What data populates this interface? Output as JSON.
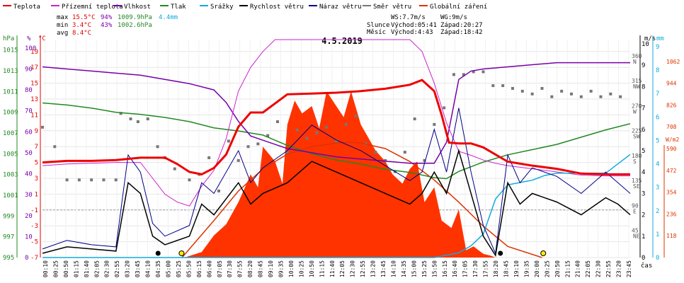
{
  "chart_data": {
    "type": "line",
    "title": "4.5.2019",
    "legend": [
      {
        "label": "Teplota",
        "color": "#dd0000"
      },
      {
        "label": "Přízemní teplota",
        "color": "#cc22cc"
      },
      {
        "label": "Vlhkost",
        "color": "#7700aa"
      },
      {
        "label": "Tlak",
        "color": "#228822"
      },
      {
        "label": "Srážky",
        "color": "#11aadd"
      },
      {
        "label": "Rychlost větru",
        "color": "#000000"
      },
      {
        "label": "Náraz větru",
        "color": "#000088"
      },
      {
        "label": "Směr větru",
        "color": "#777777"
      },
      {
        "label": "Globální záření",
        "color": "#dd3300"
      }
    ],
    "stats": {
      "rows": [
        {
          "label": "max",
          "temp": "15.5°C",
          "hum": "94%",
          "press": "1009.9hPa",
          "rain": "4.4mm"
        },
        {
          "label": "min",
          "temp": "3.4°C",
          "hum": "43%",
          "press": "1002.6hPa",
          "rain": ""
        },
        {
          "label": "avg",
          "temp": "8.4°C",
          "hum": "",
          "press": "",
          "rain": ""
        }
      ],
      "ws": "WS:7.7m/s",
      "wg": "WG:9m/s",
      "sun": {
        "label": "Slunce",
        "rise": "Východ:05:41",
        "set": "Západ:20:27"
      },
      "moon": {
        "label": "Měsíc",
        "rise": "Východ:4:43",
        "set": "Západ:18:42"
      }
    },
    "axes": {
      "hpa": {
        "label": "hPa",
        "ticks": [
          "1015",
          "1013",
          "1011",
          "1009",
          "1007",
          "1005",
          "1003",
          "1001",
          "999",
          "997",
          "995"
        ],
        "range": [
          995,
          1016
        ]
      },
      "pct": {
        "label": "%",
        "ticks": [
          "100",
          "90",
          "80",
          "70",
          "60",
          "50",
          "40",
          "30",
          "20",
          "10",
          "0"
        ]
      },
      "temp": {
        "label": "°C",
        "ticks": [
          "19",
          "17",
          "15",
          "13",
          "11",
          "9",
          "7",
          "5",
          "3",
          "1",
          "-1",
          "-3",
          "-5",
          "-7"
        ],
        "range": [
          -7,
          20.5
        ]
      },
      "dir": {
        "label": "",
        "ticks": [
          {
            "v": "360",
            "c": "N"
          },
          {
            "v": "315",
            "c": "NW"
          },
          {
            "v": "270",
            "c": "W"
          },
          {
            "v": "225",
            "c": "SW"
          },
          {
            "v": "180",
            "c": "S"
          },
          {
            "v": "135",
            "c": "SE"
          },
          {
            "v": "90",
            "c": "E"
          },
          {
            "v": "45",
            "c": "NE"
          }
        ]
      },
      "ms": {
        "label": "m/s",
        "ticks": [
          "10",
          "9",
          "8",
          "7",
          "6",
          "5",
          "4",
          "3",
          "2",
          "1",
          "0"
        ],
        "range": [
          0,
          10
        ]
      },
      "mm": {
        "label": "mm",
        "ticks": [
          "9",
          "8",
          "7",
          "6",
          "5",
          "4",
          "3",
          "2",
          "1",
          "0"
        ]
      },
      "wm2": {
        "label": "W/m2",
        "ticks": [
          "1062",
          "944",
          "826",
          "708",
          "590",
          "472",
          "354",
          "236",
          "118"
        ],
        "range": [
          0,
          1180
        ]
      },
      "time_label": "čas"
    },
    "x_ticks": [
      "00:10",
      "00:25",
      "00:50",
      "01:15",
      "01:40",
      "02:05",
      "02:30",
      "02:55",
      "03:20",
      "03:45",
      "04:10",
      "04:35",
      "05:00",
      "05:25",
      "05:50",
      "06:15",
      "06:40",
      "07:05",
      "07:30",
      "07:55",
      "08:20",
      "08:45",
      "09:10",
      "09:35",
      "10:00",
      "10:25",
      "10:50",
      "11:15",
      "11:40",
      "12:05",
      "12:30",
      "12:55",
      "13:20",
      "13:45",
      "14:10",
      "14:35",
      "15:00",
      "15:25",
      "15:50",
      "16:15",
      "16:40",
      "17:05",
      "17:30",
      "17:55",
      "18:20",
      "18:45",
      "19:10",
      "19:35",
      "20:00",
      "20:25",
      "20:50",
      "21:15",
      "21:40",
      "22:05",
      "22:30",
      "22:55",
      "23:20",
      "23:45"
    ],
    "series": {
      "teplota": {
        "name": "Teplota",
        "unit": "°C",
        "x": [
          0,
          1,
          2,
          3,
          4,
          5,
          5.5,
          6,
          6.5,
          7,
          7.5,
          8,
          8.5,
          9,
          10,
          11,
          12,
          13,
          14,
          15,
          15.5,
          16,
          16.3,
          16.6,
          17,
          17.5,
          18,
          18.5,
          19,
          20,
          21,
          22,
          23,
          24
        ],
        "y": [
          5,
          5.2,
          5.2,
          5.3,
          5.6,
          5.6,
          4.8,
          3.8,
          3.5,
          4.3,
          6,
          9.5,
          11.3,
          11.3,
          13.6,
          13.7,
          13.8,
          14,
          14.3,
          14.8,
          15.4,
          14,
          11,
          7.5,
          7.4,
          7.4,
          6.9,
          6,
          5.1,
          4.6,
          4.2,
          3.6,
          3.5,
          3.5
        ]
      },
      "prizemni": {
        "name": "Přízemní teplota",
        "unit": "°C",
        "x": [
          0,
          1,
          2,
          3,
          4,
          4.5,
          5,
          5.5,
          6,
          6.5,
          7,
          7.5,
          8,
          8.5,
          9,
          9.5,
          10,
          11,
          12,
          13,
          14,
          15,
          15.5,
          16,
          16.5,
          17,
          17.5,
          18,
          18.5,
          19,
          20,
          21,
          22,
          23,
          24
        ],
        "y": [
          4.6,
          4.8,
          4.9,
          5,
          5,
          3,
          1,
          0,
          -0.5,
          2,
          4,
          8,
          14,
          17,
          19,
          20.5,
          20.5,
          20.5,
          20.5,
          20.5,
          20.5,
          20.5,
          19,
          15,
          10,
          6.4,
          5.9,
          5.3,
          4.9,
          4.6,
          4.2,
          3.8,
          3.4,
          3.3,
          3.3
        ]
      },
      "vlhkost": {
        "name": "Vlhkost",
        "unit": "%",
        "x": [
          0,
          1,
          2,
          3,
          4,
          5,
          6,
          7,
          7.5,
          8,
          8.5,
          9,
          10,
          11,
          12,
          13,
          14,
          15,
          16,
          16.5,
          17,
          17.5,
          18,
          19,
          20,
          21,
          22,
          23,
          24
        ],
        "y": [
          91,
          90,
          89,
          88,
          87,
          85,
          83,
          80,
          74,
          65,
          58,
          56,
          52,
          50,
          48,
          47,
          46,
          45,
          45,
          55,
          85,
          89,
          90,
          91,
          92,
          93,
          93,
          93,
          93
        ]
      },
      "tlak": {
        "name": "Tlak",
        "unit": "hPa",
        "x": [
          0,
          1,
          2,
          3,
          4,
          5,
          6,
          7,
          8,
          9,
          10,
          11,
          12,
          13,
          14,
          15,
          16,
          16.5,
          17,
          18,
          19,
          20,
          21,
          22,
          23,
          24
        ],
        "y": [
          1009.9,
          1009.7,
          1009.4,
          1009,
          1008.8,
          1008.5,
          1008.1,
          1007.5,
          1007.2,
          1006.8,
          1005.8,
          1005,
          1004.4,
          1004,
          1003.5,
          1003.2,
          1002.7,
          1002.6,
          1003.3,
          1004.2,
          1004.9,
          1005.4,
          1005.9,
          1006.6,
          1007.3,
          1007.9
        ]
      },
      "srazky": {
        "name": "Srážky",
        "unit": "mm",
        "x": [
          0,
          15.5,
          16,
          17,
          17.5,
          18,
          18.5,
          19,
          19.5,
          20,
          20.5,
          21,
          21.5,
          22,
          23,
          24
        ],
        "y": [
          0,
          0,
          0,
          0.2,
          0.5,
          1,
          2.5,
          3.1,
          3.2,
          3.3,
          3.5,
          3.6,
          3.6,
          3.6,
          3.6,
          4.4
        ]
      },
      "rychlost": {
        "name": "Rychlost větru",
        "unit": "m/s",
        "x": [
          0,
          1,
          2,
          3,
          3.5,
          4,
          4.5,
          5,
          6,
          6.5,
          7,
          8,
          8.5,
          9,
          10,
          11,
          12,
          13,
          14,
          15,
          15.5,
          16,
          16.5,
          17,
          17.5,
          18,
          18.5,
          19,
          19.5,
          20,
          21,
          22,
          23,
          23.5,
          24
        ],
        "y": [
          0.2,
          0.5,
          0.4,
          0.3,
          3.5,
          3,
          1,
          0.6,
          1,
          2.5,
          2,
          3.5,
          2.5,
          3,
          3.5,
          4.5,
          4,
          3.5,
          3,
          2.5,
          3,
          4,
          3,
          5,
          3,
          1,
          0.1,
          3.5,
          2.5,
          3,
          2.6,
          2,
          2.8,
          2.5,
          2
        ]
      },
      "naraz": {
        "name": "Náraz větru",
        "unit": "m/s",
        "x": [
          0,
          1,
          2,
          3,
          3.5,
          4,
          4.5,
          5,
          6,
          6.5,
          7,
          8,
          8.5,
          9,
          10,
          11,
          12,
          13,
          14,
          15,
          15.5,
          16,
          16.5,
          17,
          17.5,
          18,
          18.5,
          19,
          19.5,
          20,
          21,
          22,
          23,
          23.5,
          24
        ],
        "y": [
          0.4,
          0.8,
          0.6,
          0.5,
          4.8,
          4,
          1.6,
          1,
          1.5,
          3.5,
          3,
          5,
          3.5,
          4.2,
          5,
          6.2,
          5.5,
          5,
          4.3,
          3.6,
          4,
          6,
          4,
          7,
          4,
          1.5,
          0.2,
          4.8,
          3.5,
          4.2,
          3.8,
          3,
          4,
          3.5,
          3
        ]
      },
      "zareni": {
        "name": "Globální záření",
        "unit": "W/m2",
        "x": [
          5.7,
          7,
          8,
          9,
          10,
          11,
          12,
          12.5,
          13,
          14,
          15,
          16,
          17,
          18,
          19,
          20.4
        ],
        "y": [
          0,
          200,
          360,
          480,
          560,
          600,
          620,
          625,
          620,
          590,
          520,
          420,
          300,
          170,
          60,
          0
        ]
      },
      "zareni_area": {
        "name": "Globální záření",
        "unit": "W/m2",
        "x": [
          5.8,
          6.5,
          7,
          7.5,
          8,
          8.5,
          8.8,
          9,
          9.5,
          9.8,
          10,
          10.3,
          10.6,
          11,
          11.3,
          11.6,
          12,
          12.3,
          12.6,
          13,
          13.3,
          13.6,
          14,
          14.3,
          14.7,
          15,
          15.3,
          15.6,
          16,
          16.3,
          16.7,
          17,
          17.3,
          17.6,
          18,
          18.3,
          18.5
        ],
        "y": [
          0,
          30,
          120,
          180,
          300,
          450,
          380,
          600,
          520,
          400,
          720,
          850,
          780,
          820,
          700,
          900,
          820,
          760,
          900,
          720,
          650,
          580,
          520,
          450,
          400,
          480,
          520,
          300,
          380,
          200,
          160,
          260,
          40,
          60,
          20,
          10,
          0
        ]
      },
      "smer": {
        "name": "Směr větru",
        "unit": "°",
        "x": [
          0,
          0.5,
          1,
          1.5,
          2,
          2.5,
          3,
          3.2,
          3.6,
          3.9,
          4.3,
          4.7,
          5,
          5.4,
          6,
          6.4,
          6.8,
          7.2,
          7.6,
          8,
          8.4,
          8.8,
          9.2,
          9.6,
          10,
          10.4,
          10.8,
          11.2,
          11.6,
          12,
          12.4,
          12.8,
          13.2,
          13.6,
          14,
          14.4,
          14.8,
          15.2,
          15.6,
          16,
          16.4,
          16.8,
          17.2,
          17.6,
          18,
          18.4,
          18.8,
          19.2,
          19.6,
          20,
          20.4,
          20.8,
          21.2,
          21.6,
          22,
          22.4,
          22.8,
          23.2,
          23.6
        ],
        "y": [
          235,
          200,
          140,
          140,
          140,
          140,
          140,
          260,
          250,
          245,
          250,
          200,
          180,
          160,
          140,
          150,
          180,
          120,
          210,
          175,
          200,
          205,
          220,
          245,
          190,
          230,
          215,
          225,
          235,
          210,
          240,
          255,
          205,
          190,
          175,
          155,
          190,
          250,
          175,
          240,
          270,
          330,
          330,
          335,
          335,
          310,
          310,
          305,
          300,
          295,
          305,
          290,
          300,
          295,
          290,
          300,
          290,
          295,
          290
        ]
      }
    }
  }
}
